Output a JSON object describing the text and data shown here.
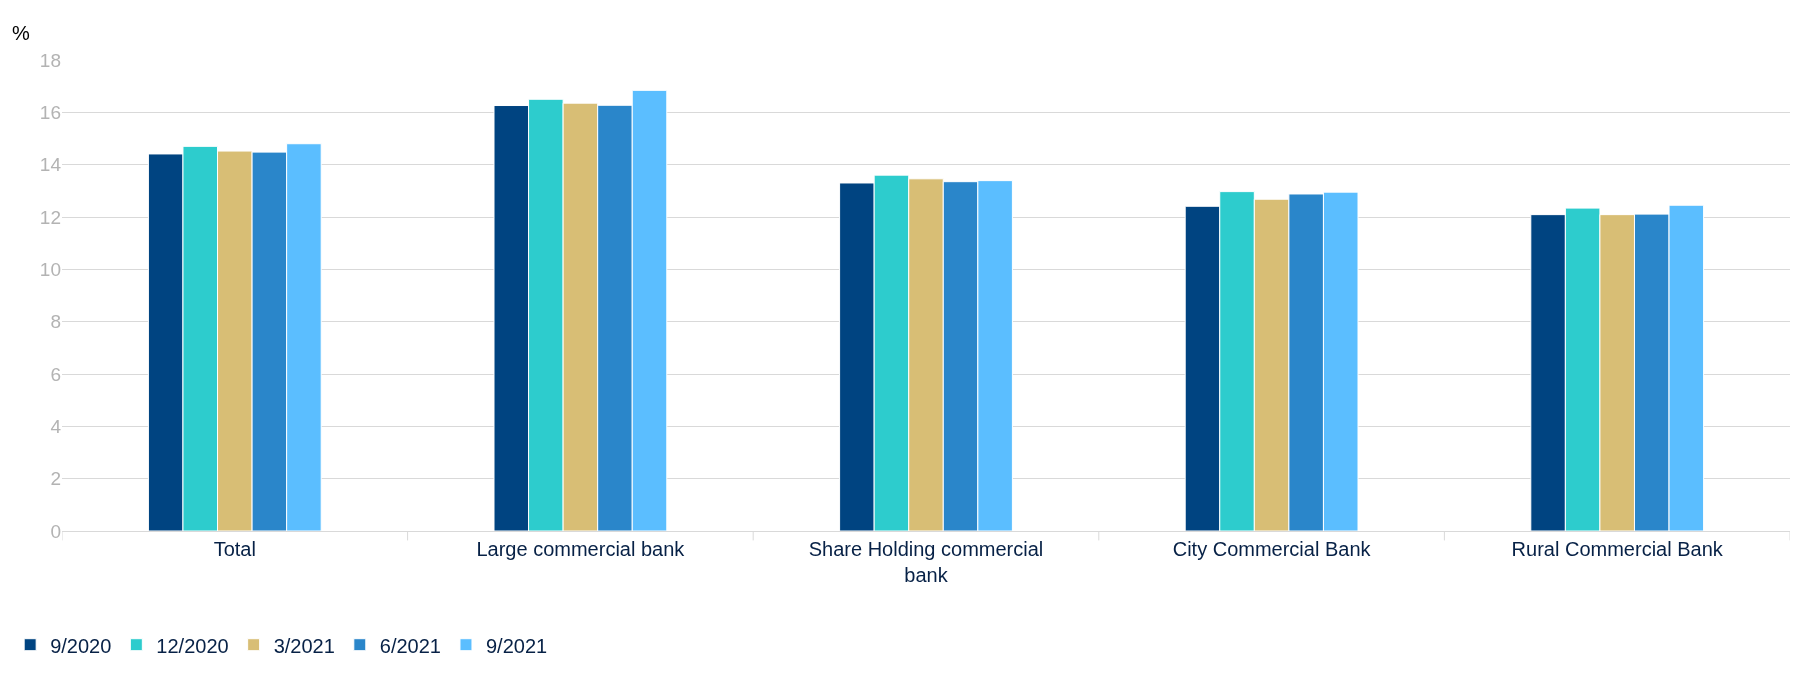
{
  "chart_data": {
    "type": "bar",
    "ylabel": "%",
    "categories": [
      "Total",
      "Large commercial bank",
      "Share Holding commercial bank",
      "City Commercial Bank",
      "Rural Commercial Bank"
    ],
    "series": [
      {
        "name": "9/2020",
        "color": "#004481",
        "values": [
          14.41,
          16.26,
          13.3,
          12.41,
          12.09
        ]
      },
      {
        "name": "12/2020",
        "color": "#2dcccd",
        "values": [
          14.7,
          16.5,
          13.6,
          12.97,
          12.34
        ]
      },
      {
        "name": "3/2021",
        "color": "#d8be75",
        "values": [
          14.52,
          16.35,
          13.46,
          12.68,
          12.09
        ]
      },
      {
        "name": "6/2021",
        "color": "#2a86ca",
        "values": [
          14.48,
          16.27,
          13.35,
          12.88,
          12.11
        ]
      },
      {
        "name": "9/2021",
        "color": "#5bbeff",
        "values": [
          14.8,
          16.84,
          13.39,
          12.95,
          12.45
        ]
      }
    ],
    "ylim": [
      0,
      18
    ],
    "yticks": [
      0,
      2,
      4,
      6,
      8,
      10,
      12,
      14,
      16,
      18
    ],
    "grid": "y",
    "legend": "bottom left"
  }
}
